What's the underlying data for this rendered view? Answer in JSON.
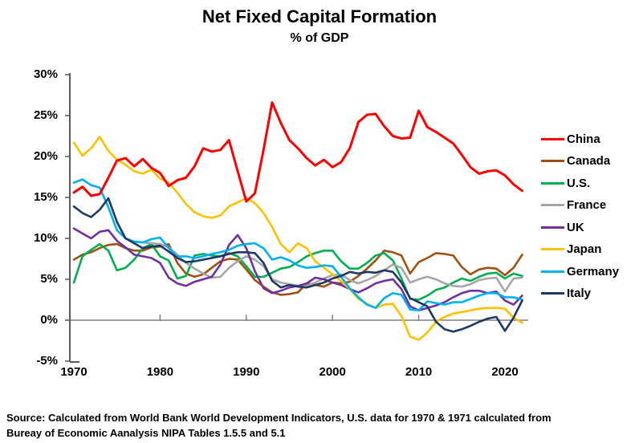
{
  "title": "Net Fixed Capital Formation",
  "subtitle": "% of GDP",
  "source_line1": "Source:  Calculated from World Bank World Development Indicators, U.S. data for 1970 & 1971 calculated from",
  "source_line2": "Bureay of Economic Aanalysis NIPA Tables 1.5.5 and 5.1",
  "chart_data": {
    "type": "line",
    "title": "Net Fixed Capital Formation",
    "subtitle": "% of GDP",
    "xlabel": "",
    "ylabel": "",
    "xlim": [
      1970,
      2022
    ],
    "ylim": [
      -5,
      30
    ],
    "grid": "zero-line-only",
    "legend_position": "right",
    "y_ticks": [
      {
        "v": 30,
        "label": "30%"
      },
      {
        "v": 25,
        "label": "25%"
      },
      {
        "v": 20,
        "label": "20%"
      },
      {
        "v": 15,
        "label": "15%"
      },
      {
        "v": 10,
        "label": "10%"
      },
      {
        "v": 5,
        "label": "5%"
      },
      {
        "v": 0,
        "label": "0%"
      },
      {
        "v": -5,
        "label": "-5%"
      }
    ],
    "x_ticks": [
      {
        "v": 1970,
        "label": "1970"
      },
      {
        "v": 1980,
        "label": "1980"
      },
      {
        "v": 1990,
        "label": "1990"
      },
      {
        "v": 2000,
        "label": "2000"
      },
      {
        "v": 2010,
        "label": "2010"
      },
      {
        "v": 2020,
        "label": "2020"
      }
    ],
    "zero_line_tick_years": [
      1980,
      1990,
      2000,
      2010
    ],
    "x_start_year": 1970,
    "series": [
      {
        "name": "China",
        "color": "#FF0000",
        "width": 3,
        "values": [
          15.6,
          16.3,
          15.2,
          15.4,
          17.4,
          19.5,
          19.8,
          18.8,
          19.7,
          18.6,
          18.0,
          16.4,
          17.1,
          17.4,
          18.8,
          21.0,
          20.6,
          20.8,
          22.0,
          18.2,
          14.5,
          15.5,
          20.8,
          26.6,
          24.1,
          22.0,
          21.0,
          19.8,
          18.9,
          19.6,
          18.7,
          19.3,
          21.0,
          24.2,
          25.1,
          25.2,
          23.7,
          22.5,
          22.2,
          22.3,
          25.6,
          23.6,
          23.0,
          22.3,
          21.6,
          20.2,
          18.7,
          17.9,
          18.2,
          18.3,
          17.7,
          16.6,
          15.8
        ]
      },
      {
        "name": "Canada",
        "color": "#A0510F",
        "width": 2.6,
        "values": [
          7.4,
          8.0,
          8.3,
          8.8,
          9.2,
          9.3,
          8.8,
          8.5,
          8.5,
          8.9,
          9.0,
          9.3,
          7.0,
          5.7,
          5.3,
          5.6,
          6.4,
          7.2,
          7.5,
          7.4,
          6.2,
          4.9,
          4.1,
          3.4,
          3.1,
          3.2,
          3.4,
          4.5,
          4.3,
          4.1,
          4.6,
          4.5,
          4.7,
          5.4,
          6.3,
          7.3,
          8.5,
          8.3,
          7.9,
          5.7,
          7.1,
          7.6,
          8.2,
          8.1,
          7.9,
          6.5,
          5.6,
          6.2,
          6.4,
          6.3,
          5.5,
          6.4,
          8.0
        ]
      },
      {
        "name": "U.S.",
        "color": "#00B050",
        "width": 2.6,
        "values": [
          4.6,
          7.8,
          8.6,
          9.3,
          8.5,
          6.1,
          6.4,
          7.4,
          8.8,
          9.3,
          7.8,
          7.3,
          5.1,
          5.4,
          7.9,
          8.1,
          7.9,
          7.8,
          8.2,
          7.8,
          6.6,
          5.3,
          5.3,
          5.8,
          6.3,
          6.5,
          7.1,
          7.8,
          8.2,
          8.5,
          8.5,
          7.2,
          6.3,
          6.3,
          7.0,
          7.9,
          8.2,
          7.3,
          5.1,
          2.6,
          2.5,
          3.0,
          3.7,
          4.0,
          4.6,
          5.1,
          4.8,
          5.3,
          5.7,
          5.8,
          5.1,
          5.7,
          5.4
        ]
      },
      {
        "name": "France",
        "color": "#A6A6A6",
        "width": 2.6,
        "values": [
          null,
          null,
          null,
          null,
          null,
          null,
          null,
          9.6,
          9.5,
          9.4,
          9.3,
          8.9,
          8.0,
          7.0,
          6.3,
          5.7,
          5.2,
          5.3,
          6.4,
          7.2,
          7.8,
          7.4,
          6.6,
          5.0,
          4.6,
          4.4,
          4.2,
          4.2,
          4.6,
          5.1,
          5.5,
          5.6,
          4.9,
          4.5,
          4.9,
          5.4,
          6.1,
          6.8,
          6.4,
          4.6,
          5.0,
          5.3,
          5.0,
          4.5,
          4.2,
          4.1,
          4.4,
          4.9,
          5.1,
          5.2,
          3.5,
          5.1,
          5.2
        ]
      },
      {
        "name": "UK",
        "color": "#7030A0",
        "width": 2.6,
        "values": [
          11.2,
          10.6,
          10.0,
          10.8,
          11.0,
          9.7,
          8.9,
          8.0,
          7.8,
          7.6,
          7.0,
          5.2,
          4.5,
          4.2,
          4.7,
          5.0,
          5.3,
          6.8,
          9.2,
          10.4,
          8.8,
          6.0,
          3.9,
          3.3,
          3.6,
          4.0,
          4.2,
          4.5,
          5.2,
          5.0,
          4.6,
          4.3,
          3.8,
          3.4,
          3.9,
          4.5,
          4.8,
          5.0,
          3.8,
          1.7,
          1.2,
          1.5,
          1.8,
          2.2,
          2.8,
          3.3,
          3.6,
          3.6,
          3.3,
          3.5,
          2.4,
          1.9,
          3.0
        ]
      },
      {
        "name": "Japan",
        "color": "#FFC000",
        "width": 2.6,
        "values": [
          21.7,
          20.1,
          21.0,
          22.4,
          20.7,
          19.6,
          19.0,
          18.2,
          17.9,
          18.4,
          17.3,
          16.8,
          15.6,
          14.2,
          13.2,
          12.7,
          12.5,
          12.8,
          13.9,
          14.4,
          14.9,
          14.3,
          13.1,
          11.4,
          9.3,
          8.3,
          9.4,
          8.8,
          7.2,
          6.4,
          5.6,
          4.8,
          3.8,
          2.6,
          2.0,
          1.5,
          1.9,
          2.0,
          0.5,
          -2.0,
          -2.4,
          -1.5,
          -0.2,
          0.4,
          0.8,
          1.0,
          1.2,
          1.4,
          1.5,
          1.5,
          1.4,
          0.3,
          -0.3
        ]
      },
      {
        "name": "Germany",
        "color": "#00B0F0",
        "width": 2.6,
        "values": [
          16.8,
          17.2,
          16.5,
          16.2,
          13.8,
          11.0,
          10.0,
          9.6,
          9.5,
          9.9,
          10.1,
          8.8,
          7.8,
          7.8,
          7.6,
          7.8,
          8.1,
          8.3,
          8.6,
          9.1,
          9.3,
          9.4,
          8.8,
          7.4,
          7.7,
          7.3,
          6.7,
          6.4,
          6.5,
          6.7,
          6.6,
          5.3,
          3.9,
          2.8,
          1.9,
          1.5,
          2.7,
          3.3,
          3.1,
          1.3,
          1.2,
          2.3,
          2.1,
          1.9,
          2.2,
          2.2,
          2.6,
          3.0,
          3.3,
          3.3,
          2.8,
          2.8,
          2.5
        ]
      },
      {
        "name": "Italy",
        "color": "#1F3864",
        "width": 2.6,
        "values": [
          13.9,
          13.1,
          12.6,
          13.5,
          14.9,
          12.0,
          10.0,
          9.4,
          8.8,
          9.0,
          9.1,
          8.4,
          7.6,
          7.1,
          7.2,
          7.4,
          7.6,
          7.8,
          8.1,
          8.3,
          8.3,
          8.2,
          7.0,
          4.8,
          4.0,
          4.3,
          4.1,
          4.0,
          4.3,
          4.6,
          5.1,
          5.4,
          5.9,
          5.7,
          5.9,
          5.8,
          6.1,
          5.9,
          4.6,
          2.7,
          2.2,
          1.7,
          -0.2,
          -1.1,
          -1.4,
          -1.1,
          -0.7,
          -0.2,
          0.2,
          0.4,
          -1.3,
          0.3,
          2.4
        ]
      }
    ],
    "colors": {
      "axis": "#595959",
      "zero_line": "#808080",
      "text": "#000000"
    }
  }
}
